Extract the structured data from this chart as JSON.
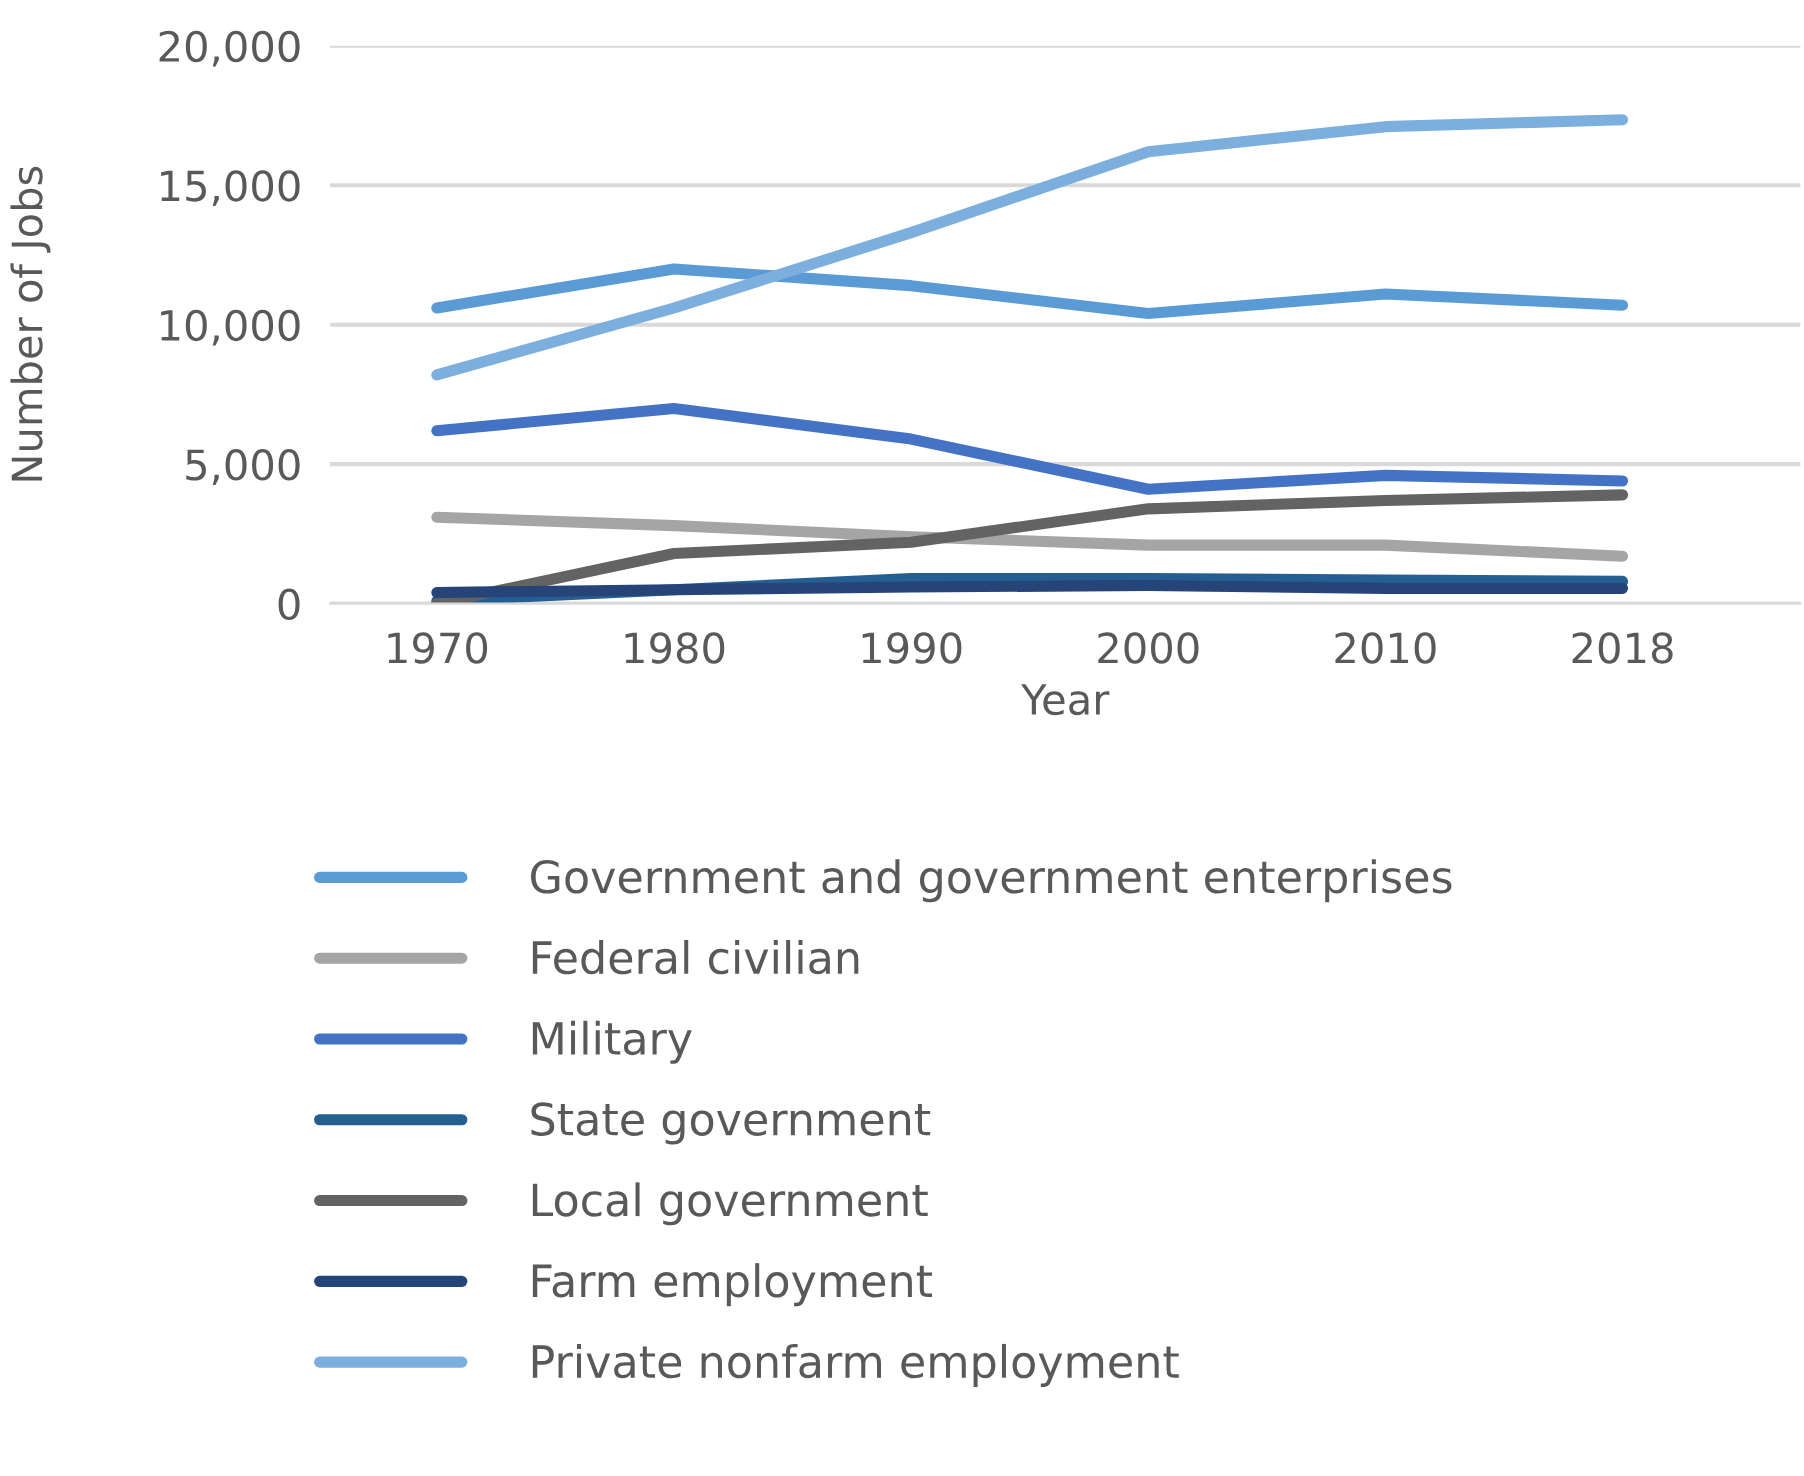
{
  "chart_data": {
    "type": "line",
    "xlabel": "Year",
    "ylabel": "Number of Jobs",
    "categories": [
      "1970",
      "1980",
      "1990",
      "2000",
      "2010",
      "2018"
    ],
    "series": [
      {
        "name": "Government and government enterprises",
        "color": "#5b9bd5",
        "values": [
          10600,
          12000,
          11400,
          10400,
          11100,
          10700
        ]
      },
      {
        "name": "Federal civilian",
        "color": "#a5a5a5",
        "values": [
          3100,
          2800,
          2400,
          2100,
          2100,
          1700
        ]
      },
      {
        "name": "Military",
        "color": "#4472c4",
        "values": [
          6200,
          7000,
          5900,
          4100,
          4600,
          4400
        ]
      },
      {
        "name": "State government",
        "color": "#255e91",
        "values": [
          100,
          500,
          900,
          900,
          850,
          800
        ]
      },
      {
        "name": "Local government",
        "color": "#636363",
        "values": [
          0,
          1800,
          2200,
          3400,
          3700,
          3900
        ]
      },
      {
        "name": "Farm employment",
        "color": "#264478",
        "values": [
          400,
          500,
          600,
          650,
          550,
          550
        ]
      },
      {
        "name": "Private nonfarm employment",
        "color": "#7cafdd",
        "values": [
          8200,
          10600,
          13300,
          16200,
          17100,
          17350
        ]
      }
    ],
    "ylim": [
      0,
      20000
    ],
    "yticks": [
      {
        "value": 0,
        "label": "0"
      },
      {
        "value": 5000,
        "label": "5,000"
      },
      {
        "value": 10000,
        "label": "10,000"
      },
      {
        "value": 15000,
        "label": "15,000"
      },
      {
        "value": 20000,
        "label": "20,000"
      }
    ],
    "grid": "y",
    "legend": "bottom",
    "marker": "none",
    "line_style": "solid"
  }
}
